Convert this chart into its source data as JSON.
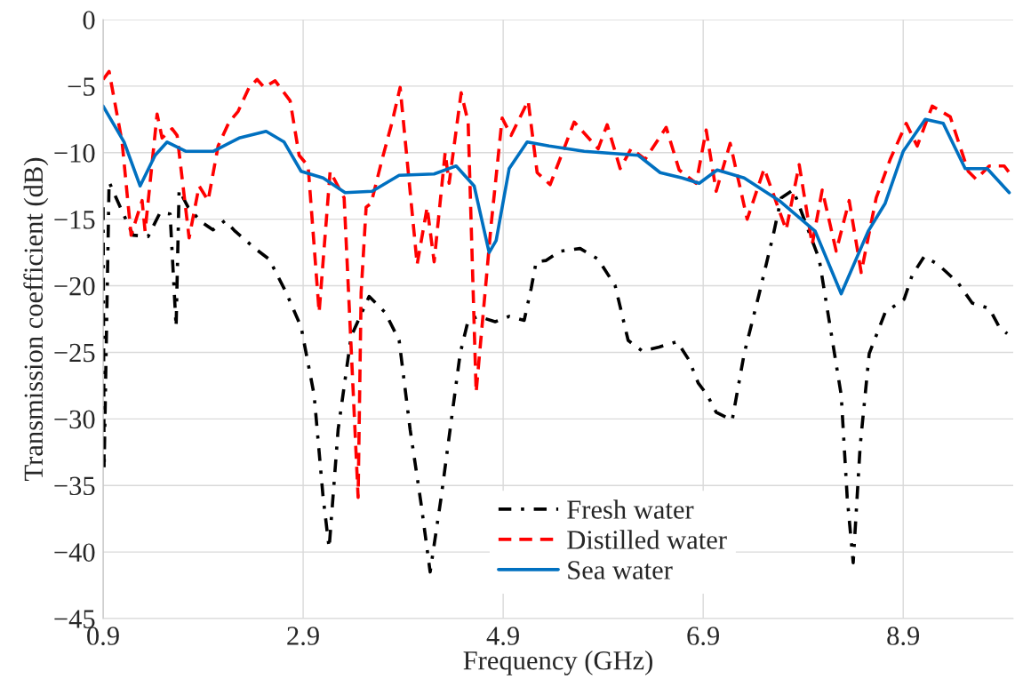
{
  "chart_data": {
    "type": "line",
    "xlabel": "Frequency (GHz)",
    "ylabel": "Transmission coefficient (dB)",
    "xlim": [
      0.9,
      10.0
    ],
    "xticks": [
      0.9,
      2.9,
      4.9,
      6.9,
      8.9
    ],
    "ylim": [
      -45,
      0
    ],
    "yticks": [
      {
        "value": -45,
        "label": "−45"
      },
      {
        "value": -40,
        "label": "−40"
      },
      {
        "value": -35,
        "label": "−35"
      },
      {
        "value": -30,
        "label": "−30"
      },
      {
        "value": -25,
        "label": "−25"
      },
      {
        "value": -20,
        "label": "−20"
      },
      {
        "value": -15,
        "label": "−15"
      },
      {
        "value": -10,
        "label": "−10"
      },
      {
        "value": -5,
        "label": "−5"
      },
      0
    ],
    "grid": true,
    "legend": "bottom",
    "marker": "none",
    "series": [
      {
        "name": "Fresh water",
        "color": "#000000",
        "line_style": "dashdot",
        "x": [
          0.9,
          0.91,
          0.96,
          1.09,
          1.2,
          1.35,
          1.47,
          1.57,
          1.63,
          1.66,
          1.75,
          1.88,
          2.0,
          2.12,
          2.22,
          2.42,
          2.56,
          2.73,
          2.88,
          3.01,
          3.1,
          3.16,
          3.25,
          3.38,
          3.56,
          3.72,
          3.86,
          3.97,
          4.08,
          4.17,
          4.28,
          4.38,
          4.47,
          4.55,
          4.65,
          4.82,
          4.96,
          5.11,
          5.18,
          5.23,
          5.33,
          5.47,
          5.67,
          5.85,
          6.02,
          6.15,
          6.29,
          6.46,
          6.64,
          6.76,
          6.85,
          6.94,
          7.03,
          7.19,
          7.31,
          7.46,
          7.6,
          7.68,
          7.8,
          7.88,
          8.06,
          8.17,
          8.28,
          8.34,
          8.4,
          8.47,
          8.56,
          8.72,
          8.91,
          8.99,
          9.11,
          9.25,
          9.45,
          9.59,
          9.76,
          9.86,
          9.94
        ],
        "values": [
          -14.1,
          -33.8,
          -12.2,
          -14.4,
          -16.2,
          -16.3,
          -14.5,
          -14.6,
          -23.1,
          -12.8,
          -14.1,
          -15.2,
          -15.8,
          -15.1,
          -15.9,
          -17.2,
          -18,
          -20.5,
          -23.1,
          -28.2,
          -35.9,
          -39.7,
          -30.8,
          -23.8,
          -20.8,
          -22,
          -24.1,
          -30.8,
          -36.4,
          -41.5,
          -35.9,
          -30.2,
          -25.1,
          -22.6,
          -22.3,
          -22.7,
          -22.3,
          -22.6,
          -20.2,
          -18.2,
          -18.1,
          -17.4,
          -17.2,
          -18,
          -20,
          -24.1,
          -24.9,
          -24.6,
          -24.2,
          -25.6,
          -27.3,
          -28.2,
          -29.5,
          -30.1,
          -25.1,
          -20.6,
          -16.2,
          -13.4,
          -12.8,
          -14.4,
          -18,
          -23.1,
          -28.2,
          -35.9,
          -40.8,
          -32,
          -25.1,
          -22,
          -21,
          -19.2,
          -17.8,
          -18.4,
          -19.8,
          -21.3,
          -21.7,
          -23.1,
          -23.6
        ]
      },
      {
        "name": "Distilled water",
        "color": "#ff0000",
        "line_style": "dashed",
        "x": [
          0.9,
          0.96,
          1.09,
          1.18,
          1.29,
          1.32,
          1.44,
          1.49,
          1.59,
          1.64,
          1.76,
          1.86,
          1.95,
          2.05,
          2.16,
          2.25,
          2.36,
          2.44,
          2.51,
          2.62,
          2.77,
          2.86,
          2.95,
          3.06,
          3.17,
          3.31,
          3.45,
          3.48,
          3.53,
          3.58,
          3.69,
          3.79,
          3.87,
          4.04,
          4.14,
          4.21,
          4.32,
          4.36,
          4.48,
          4.55,
          4.63,
          4.78,
          4.89,
          4.98,
          5.15,
          5.24,
          5.37,
          5.61,
          5.85,
          5.94,
          6.07,
          6.18,
          6.32,
          6.53,
          6.66,
          6.83,
          6.93,
          7.03,
          7.17,
          7.34,
          7.51,
          7.73,
          7.86,
          7.99,
          8.09,
          8.23,
          8.36,
          8.48,
          8.63,
          8.77,
          8.93,
          9.04,
          9.19,
          9.37,
          9.55,
          9.63,
          9.76,
          9.91,
          9.99
        ],
        "values": [
          -4.5,
          -3.9,
          -9.2,
          -16.2,
          -13.6,
          -15.9,
          -7.1,
          -8.9,
          -8.2,
          -8.7,
          -16.4,
          -12.5,
          -13.6,
          -9.5,
          -7.7,
          -6.9,
          -5.1,
          -4.5,
          -5.1,
          -4.6,
          -6.1,
          -10.2,
          -11,
          -22,
          -11.4,
          -13.4,
          -35.9,
          -20.5,
          -14.1,
          -13.8,
          -10.5,
          -7.7,
          -5.1,
          -18.4,
          -14.1,
          -18.2,
          -10,
          -12.3,
          -5.5,
          -7.7,
          -28,
          -15.4,
          -7.4,
          -8.7,
          -6.1,
          -11.5,
          -12.4,
          -7.7,
          -9.7,
          -7.9,
          -11.2,
          -9.7,
          -10.5,
          -8.1,
          -11.3,
          -12.3,
          -8.3,
          -12.9,
          -9.3,
          -15,
          -11.2,
          -15.8,
          -10.9,
          -16.9,
          -12.8,
          -17.4,
          -13.6,
          -19,
          -13.4,
          -10.5,
          -7.8,
          -9.5,
          -6.5,
          -7.3,
          -11.4,
          -12,
          -11,
          -11,
          -11.8
        ]
      },
      {
        "name": "Sea water",
        "color": "#0070c0",
        "line_style": "solid",
        "x": [
          0.9,
          1.11,
          1.27,
          1.42,
          1.54,
          1.73,
          2.0,
          2.26,
          2.53,
          2.71,
          2.88,
          3.1,
          3.32,
          3.59,
          3.86,
          4.21,
          4.43,
          4.61,
          4.76,
          4.83,
          4.96,
          5.14,
          5.36,
          5.71,
          6.25,
          6.47,
          6.69,
          6.86,
          7.04,
          7.31,
          7.66,
          8.02,
          8.28,
          8.55,
          8.72,
          8.9,
          9.12,
          9.3,
          9.52,
          9.74,
          9.96
        ],
        "values": [
          -6.5,
          -9.2,
          -12.5,
          -10.2,
          -9.2,
          -9.9,
          -9.9,
          -8.9,
          -8.4,
          -9.2,
          -11.4,
          -11.9,
          -13,
          -12.9,
          -11.7,
          -11.6,
          -11,
          -12.5,
          -17.5,
          -16.6,
          -11.2,
          -9.2,
          -9.5,
          -9.9,
          -10.2,
          -11.5,
          -11.9,
          -12.3,
          -11.3,
          -11.9,
          -13.6,
          -15.9,
          -20.6,
          -15.9,
          -13.8,
          -9.9,
          -7.5,
          -7.8,
          -11.2,
          -11.2,
          -13
        ]
      }
    ]
  }
}
